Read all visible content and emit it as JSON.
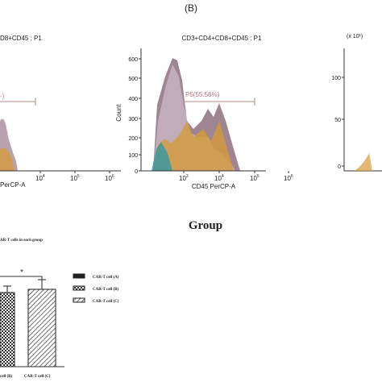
{
  "figure": {
    "panel_label": "(B)",
    "left_panel": {
      "title": "D8+CD45 : P1",
      "gate_label": "-)",
      "xticks": [
        {
          "base": "10",
          "exp": "4"
        },
        {
          "base": "10",
          "exp": "5"
        },
        {
          "base": "10",
          "exp": "6"
        }
      ],
      "xlabel": "PerCP-A"
    },
    "middle_panel": {
      "title": "CD3+CD4+CD8+CD45 : P1",
      "ylabel": "Count",
      "yticks": [
        "600",
        "500",
        "400",
        "300",
        "200",
        "100",
        "0"
      ],
      "gate_label": "P5(55.56%)",
      "xticks": [
        {
          "base": "10",
          "exp": "3"
        },
        {
          "base": "10",
          "exp": "4"
        },
        {
          "base": "10",
          "exp": "5"
        },
        {
          "base": "10",
          "exp": "6"
        }
      ],
      "xlabel": "CD45 PerCP-A"
    },
    "right_panel": {
      "scale": "(x 10¹)",
      "yticks": [
        "100",
        "50",
        "0"
      ]
    },
    "group_title": "Group",
    "bar_panel": {
      "title": "AR-T cells in each group",
      "significance": "*",
      "legend": [
        "CAR-T cell (A)",
        "CAR-T cell (B)",
        "CAR-T cell (C)"
      ],
      "categories": [
        "cell (B)",
        "CAR-T cell (C)"
      ]
    }
  }
}
